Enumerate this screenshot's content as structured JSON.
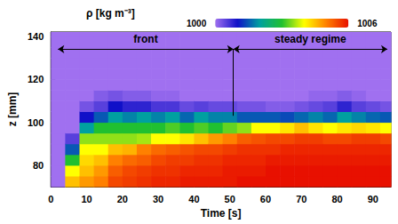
{
  "chart_data": {
    "type": "heatmap",
    "x_label": "Time [s]",
    "y_label": "z [mm]",
    "xlim": [
      0,
      95
    ],
    "xticks": [
      0,
      10,
      20,
      30,
      40,
      50,
      60,
      70,
      80,
      90
    ],
    "ylim": [
      70,
      142
    ],
    "yticks": [
      80,
      100,
      120,
      140
    ],
    "grid": false,
    "x_edges": [
      0,
      4,
      8,
      12,
      16,
      20,
      24,
      28,
      32,
      36,
      40,
      44,
      48,
      52,
      56,
      60,
      64,
      68,
      72,
      76,
      80,
      84,
      88,
      92,
      95
    ],
    "z_edges": [
      70,
      75,
      80,
      85,
      90,
      95,
      100,
      105,
      110,
      115,
      120,
      125,
      130,
      135,
      140,
      142
    ],
    "cells": [
      [
        1000,
        1000,
        1000,
        1000,
        1000,
        1000,
        1000,
        1000,
        1000,
        1000,
        1000,
        1000,
        1000,
        1000,
        1000
      ],
      [
        1004.5,
        1004,
        1003,
        1001.5,
        1000.5,
        1000,
        1000,
        1000,
        1000,
        1000,
        1000,
        1000,
        1000,
        1000,
        1000
      ],
      [
        1004.8,
        1004.5,
        1004.3,
        1004,
        1003.5,
        1002,
        1001,
        1000.3,
        1000,
        1000,
        1000,
        1000,
        1000,
        1000,
        1000
      ],
      [
        1005,
        1004.8,
        1004.5,
        1004,
        1003.5,
        1003,
        1001.5,
        1000.5,
        1000.2,
        1000,
        1000,
        1000,
        1000,
        1000,
        1000
      ],
      [
        1005.5,
        1005.3,
        1005,
        1004.5,
        1003.5,
        1003,
        1002,
        1001,
        1000.3,
        1000,
        1000,
        1000,
        1000,
        1000,
        1000
      ],
      [
        1005.6,
        1005.5,
        1005.2,
        1004.6,
        1003.5,
        1003,
        1001.8,
        1000.8,
        1000.2,
        1000,
        1000,
        1000,
        1000,
        1000,
        1000
      ],
      [
        1005.7,
        1005.6,
        1005.3,
        1005,
        1003.6,
        1003,
        1002,
        1000.8,
        1000.2,
        1000,
        1000,
        1000,
        1000,
        1000,
        1000
      ],
      [
        1005.8,
        1005.7,
        1005.5,
        1005.2,
        1004,
        1003,
        1001.8,
        1000.6,
        1000.1,
        1000,
        1000,
        1000,
        1000,
        1000,
        1000
      ],
      [
        1005.8,
        1005.7,
        1005.6,
        1005.3,
        1004,
        1003.2,
        1002,
        1000.6,
        1000.1,
        1000,
        1000,
        1000,
        1000,
        1000,
        1000
      ],
      [
        1005.9,
        1005.8,
        1005.6,
        1005.4,
        1004.2,
        1003,
        1001.6,
        1000.4,
        1000,
        1000,
        1000,
        1000,
        1000,
        1000,
        1000
      ],
      [
        1005.9,
        1005.8,
        1005.7,
        1005.5,
        1004.5,
        1003.2,
        1002,
        1000.5,
        1000,
        1000,
        1000,
        1000,
        1000,
        1000,
        1000
      ],
      [
        1005.9,
        1005.8,
        1005.7,
        1005.5,
        1004.8,
        1003,
        1001.8,
        1000.4,
        1000,
        1000,
        1000,
        1000,
        1000,
        1000,
        1000
      ],
      [
        1005.9,
        1005.9,
        1005.8,
        1005.6,
        1005,
        1003.3,
        1001.8,
        1000.4,
        1000,
        1000,
        1000,
        1000,
        1000,
        1000,
        1000
      ],
      [
        1006,
        1005.9,
        1005.8,
        1005.7,
        1005.3,
        1003.5,
        1001.5,
        1000.3,
        1000,
        1000,
        1000,
        1000,
        1000,
        1000,
        1000
      ],
      [
        1006,
        1005.9,
        1005.8,
        1005.7,
        1005.4,
        1004,
        1001.5,
        1000.3,
        1000,
        1000,
        1000,
        1000,
        1000,
        1000,
        1000
      ],
      [
        1006,
        1006,
        1005.9,
        1005.7,
        1005.5,
        1004,
        1001.5,
        1000.2,
        1000,
        1000,
        1000,
        1000,
        1000,
        1000,
        1000
      ],
      [
        1006,
        1006,
        1005.9,
        1005.8,
        1005.5,
        1004.2,
        1001.4,
        1000.2,
        1000,
        1000,
        1000,
        1000,
        1000,
        1000,
        1000
      ],
      [
        1006,
        1006,
        1005.9,
        1005.8,
        1005.6,
        1004.5,
        1001.6,
        1000.3,
        1000,
        1000,
        1000,
        1000,
        1000,
        1000,
        1000
      ],
      [
        1006,
        1006,
        1005.9,
        1005.8,
        1005.6,
        1004.2,
        1001.8,
        1000.4,
        1000.1,
        1000,
        1000,
        1000,
        1000,
        1000,
        1000
      ],
      [
        1006,
        1006,
        1005.9,
        1005.8,
        1005.5,
        1004,
        1001.6,
        1000.5,
        1000.1,
        1000,
        1000,
        1000,
        1000,
        1000,
        1000
      ],
      [
        1006,
        1006,
        1005.9,
        1005.8,
        1005.5,
        1004.2,
        1002,
        1000.8,
        1000.2,
        1000,
        1000,
        1000,
        1000,
        1000,
        1000
      ],
      [
        1006,
        1006,
        1005.9,
        1005.8,
        1005.6,
        1004.3,
        1001.8,
        1000.5,
        1000.1,
        1000,
        1000,
        1000,
        1000,
        1000,
        1000
      ],
      [
        1006,
        1006,
        1005.9,
        1005.8,
        1005.6,
        1004.2,
        1001.6,
        1000.4,
        1000,
        1000,
        1000,
        1000,
        1000,
        1000,
        1000
      ],
      [
        1006,
        1006,
        1005.9,
        1005.8,
        1005.5,
        1004,
        1001.5,
        1000.3,
        1000,
        1000,
        1000,
        1000,
        1000,
        1000,
        1000
      ]
    ],
    "colorbar": {
      "label": "ρ [kg m⁻³]",
      "range": [
        1000,
        1006
      ],
      "colors": [
        "#a070f0",
        "#1010c8",
        "#00a0a0",
        "#20c030",
        "#ffff00",
        "#ff8000",
        "#e81000"
      ]
    },
    "annotations": [
      {
        "text": "front",
        "x": [
          2,
          51
        ],
        "z": 134
      },
      {
        "text": "steady regime",
        "x": [
          51,
          94
        ],
        "z": 134
      }
    ],
    "divider": {
      "x": 51,
      "z": [
        103,
        134
      ]
    }
  }
}
